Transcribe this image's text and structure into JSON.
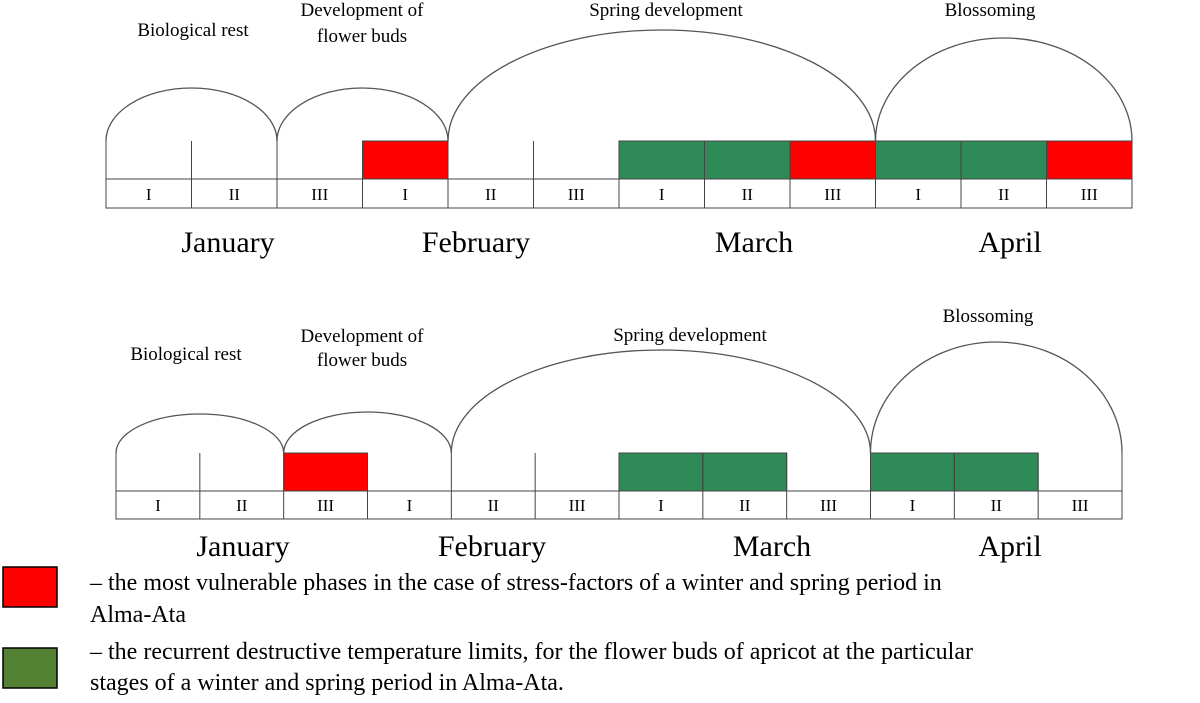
{
  "colors": {
    "red": "#ff0000",
    "green": "#2e8b57",
    "legend_green": "#548235",
    "line": "#555555"
  },
  "decades": [
    "I",
    "II",
    "III"
  ],
  "diagrams": [
    {
      "phases": [
        {
          "lines": [
            "Biological rest"
          ],
          "start": 0,
          "end": 2
        },
        {
          "lines": [
            "Development of",
            "flower buds"
          ],
          "start": 2,
          "end": 4
        },
        {
          "lines": [
            "Spring development"
          ],
          "start": 4,
          "end": 9
        },
        {
          "lines": [
            "Blossoming"
          ],
          "start": 9,
          "end": 12
        }
      ],
      "months": [
        "January",
        "February",
        "March",
        "April"
      ],
      "red_cells": [
        3,
        8,
        11
      ],
      "green_cells": [
        6,
        7,
        9,
        10
      ]
    },
    {
      "phases": [
        {
          "lines": [
            "Biological rest"
          ],
          "start": 0,
          "end": 2
        },
        {
          "lines": [
            "Development of",
            "flower buds"
          ],
          "start": 2,
          "end": 4
        },
        {
          "lines": [
            "Spring development"
          ],
          "start": 4,
          "end": 9
        },
        {
          "lines": [
            "Blossoming"
          ],
          "start": 9,
          "end": 12
        }
      ],
      "months": [
        "January",
        "February",
        "March",
        "April"
      ],
      "red_cells": [
        2
      ],
      "green_cells": [
        6,
        7,
        9,
        10
      ]
    }
  ],
  "legend": [
    {
      "color": "red",
      "lines": [
        "– the most vulnerable phases in the case of stress-factors of a winter and spring period in",
        "Alma-Ata"
      ]
    },
    {
      "color": "legend_green",
      "lines": [
        "– the recurrent destructive temperature limits, for the flower buds of apricot at the particular",
        "stages of a winter and spring period in Alma-Ata."
      ]
    }
  ]
}
